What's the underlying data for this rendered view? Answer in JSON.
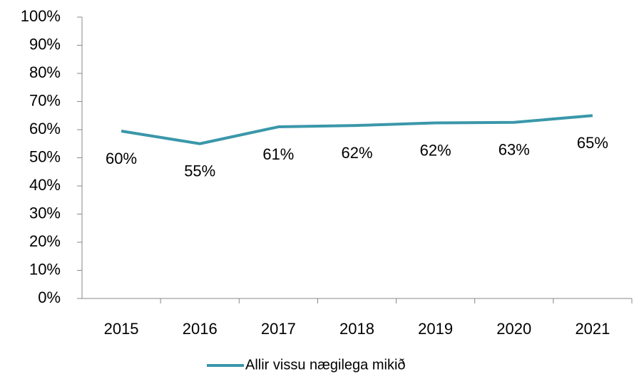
{
  "chart_data": {
    "type": "line",
    "categories": [
      "2015",
      "2016",
      "2017",
      "2018",
      "2019",
      "2020",
      "2021"
    ],
    "series": [
      {
        "name": "Allir vissu nægilega mikið",
        "color": "#3a97aa",
        "values": [
          59.5,
          55,
          61,
          61.5,
          62.4,
          62.6,
          65
        ],
        "value_labels": [
          "60%",
          "55%",
          "61%",
          "62%",
          "62%",
          "63%",
          "65%"
        ]
      }
    ],
    "ylim": [
      0,
      100
    ],
    "yticks": [
      {
        "value": 0,
        "label": "0%"
      },
      {
        "value": 10,
        "label": "10%"
      },
      {
        "value": 20,
        "label": "20%"
      },
      {
        "value": 30,
        "label": "30%"
      },
      {
        "value": 40,
        "label": "40%"
      },
      {
        "value": 50,
        "label": "50%"
      },
      {
        "value": 60,
        "label": "60%"
      },
      {
        "value": 70,
        "label": "70%"
      },
      {
        "value": 80,
        "label": "80%"
      },
      {
        "value": 90,
        "label": "90%"
      },
      {
        "value": 100,
        "label": "100%"
      }
    ],
    "grid": false,
    "legend": "bottom"
  }
}
